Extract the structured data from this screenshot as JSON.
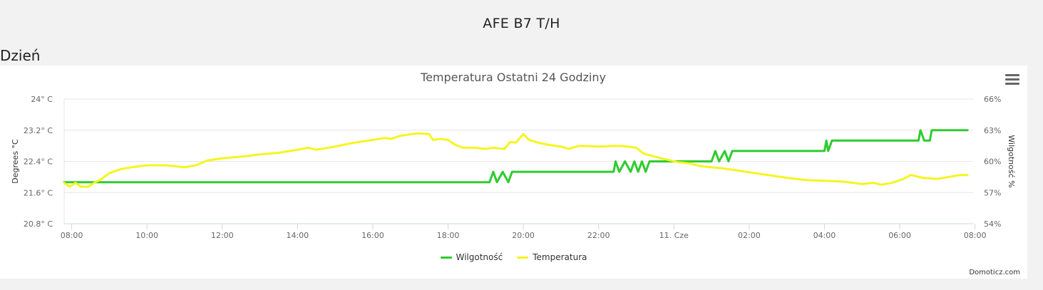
{
  "page": {
    "title": "AFE B7 T/H",
    "section": "Dzień"
  },
  "icons": {
    "menu": "hamburger-menu-icon"
  },
  "credits": "Domoticz.com",
  "colors": {
    "humidity": "#2ecc2e",
    "temperature": "#f5f520",
    "grid": "#e6e6e6"
  },
  "chart_data": {
    "type": "line",
    "title": "Temperatura Ostatni 24 Godziny",
    "xlabel": "",
    "x_tick_labels": [
      "08:00",
      "10:00",
      "12:00",
      "14:00",
      "16:00",
      "18:00",
      "20:00",
      "22:00",
      "11. Cze",
      "02:00",
      "04:00",
      "06:00",
      "08:00"
    ],
    "x_range_hours": [
      7.8,
      31.95
    ],
    "y_left": {
      "label": "Degrees °C",
      "range": [
        20.8,
        24
      ],
      "ticks": [
        "24° C",
        "23.2° C",
        "22.4° C",
        "21.6° C",
        "20.8° C"
      ],
      "tick_values": [
        24,
        23.2,
        22.4,
        21.6,
        20.8
      ]
    },
    "y_right": {
      "label": "Wilgotność %",
      "range": [
        54,
        66
      ],
      "ticks": [
        "66%",
        "63%",
        "60%",
        "57%",
        "54%"
      ],
      "tick_values": [
        66,
        63,
        60,
        57,
        54
      ]
    },
    "grid": true,
    "legend_position": "bottom-center",
    "series": [
      {
        "name": "Wilgotność",
        "axis": "right",
        "color": "#2ecc2e",
        "points": [
          [
            7.8,
            58
          ],
          [
            19.1,
            58
          ],
          [
            19.2,
            59
          ],
          [
            19.3,
            58
          ],
          [
            19.45,
            59
          ],
          [
            19.6,
            58
          ],
          [
            19.7,
            59
          ],
          [
            22.4,
            59
          ],
          [
            22.45,
            60
          ],
          [
            22.55,
            59
          ],
          [
            22.7,
            60
          ],
          [
            22.85,
            59
          ],
          [
            22.95,
            60
          ],
          [
            23.05,
            59
          ],
          [
            23.15,
            60
          ],
          [
            23.25,
            59
          ],
          [
            23.35,
            60
          ],
          [
            25.0,
            60
          ],
          [
            25.1,
            61
          ],
          [
            25.2,
            60
          ],
          [
            25.35,
            61
          ],
          [
            25.45,
            60
          ],
          [
            25.55,
            61
          ],
          [
            28.0,
            61
          ],
          [
            28.05,
            62
          ],
          [
            28.1,
            61
          ],
          [
            28.2,
            62
          ],
          [
            30.5,
            62
          ],
          [
            30.55,
            63
          ],
          [
            30.65,
            62
          ],
          [
            30.8,
            62
          ],
          [
            30.85,
            63
          ],
          [
            31.8,
            63
          ]
        ]
      },
      {
        "name": "Temperatura",
        "axis": "left",
        "color": "#f5f520",
        "points": [
          [
            7.8,
            21.85
          ],
          [
            7.95,
            21.75
          ],
          [
            8.1,
            21.85
          ],
          [
            8.25,
            21.75
          ],
          [
            8.45,
            21.75
          ],
          [
            8.6,
            21.85
          ],
          [
            8.8,
            21.95
          ],
          [
            9.0,
            22.1
          ],
          [
            9.3,
            22.2
          ],
          [
            9.6,
            22.25
          ],
          [
            10.0,
            22.3
          ],
          [
            10.5,
            22.3
          ],
          [
            11.0,
            22.25
          ],
          [
            11.3,
            22.3
          ],
          [
            11.6,
            22.42
          ],
          [
            12.0,
            22.48
          ],
          [
            12.5,
            22.52
          ],
          [
            13.0,
            22.58
          ],
          [
            13.5,
            22.62
          ],
          [
            14.0,
            22.7
          ],
          [
            14.3,
            22.75
          ],
          [
            14.5,
            22.7
          ],
          [
            15.0,
            22.78
          ],
          [
            15.5,
            22.88
          ],
          [
            16.0,
            22.95
          ],
          [
            16.3,
            23.0
          ],
          [
            16.5,
            22.98
          ],
          [
            16.7,
            23.05
          ],
          [
            16.9,
            23.08
          ],
          [
            17.2,
            23.12
          ],
          [
            17.5,
            23.1
          ],
          [
            17.6,
            22.95
          ],
          [
            17.8,
            22.98
          ],
          [
            18.0,
            22.95
          ],
          [
            18.2,
            22.82
          ],
          [
            18.4,
            22.75
          ],
          [
            18.7,
            22.75
          ],
          [
            19.0,
            22.72
          ],
          [
            19.2,
            22.75
          ],
          [
            19.5,
            22.72
          ],
          [
            19.65,
            22.9
          ],
          [
            19.8,
            22.88
          ],
          [
            20.0,
            23.1
          ],
          [
            20.15,
            22.95
          ],
          [
            20.4,
            22.88
          ],
          [
            20.7,
            22.82
          ],
          [
            21.0,
            22.78
          ],
          [
            21.2,
            22.72
          ],
          [
            21.5,
            22.8
          ],
          [
            22.0,
            22.78
          ],
          [
            22.5,
            22.8
          ],
          [
            22.8,
            22.78
          ],
          [
            23.0,
            22.75
          ],
          [
            23.2,
            22.6
          ],
          [
            23.5,
            22.52
          ],
          [
            23.8,
            22.45
          ],
          [
            24.1,
            22.38
          ],
          [
            24.4,
            22.35
          ],
          [
            24.7,
            22.28
          ],
          [
            25.0,
            22.25
          ],
          [
            25.3,
            22.22
          ],
          [
            25.6,
            22.18
          ],
          [
            26.0,
            22.12
          ],
          [
            26.5,
            22.05
          ],
          [
            27.0,
            21.98
          ],
          [
            27.5,
            21.92
          ],
          [
            28.0,
            21.9
          ],
          [
            28.5,
            21.88
          ],
          [
            29.0,
            21.82
          ],
          [
            29.3,
            21.85
          ],
          [
            29.5,
            21.8
          ],
          [
            29.8,
            21.85
          ],
          [
            30.1,
            21.95
          ],
          [
            30.3,
            22.05
          ],
          [
            30.6,
            21.98
          ],
          [
            31.0,
            21.95
          ],
          [
            31.3,
            22.0
          ],
          [
            31.6,
            22.05
          ],
          [
            31.8,
            22.05
          ]
        ]
      }
    ]
  }
}
